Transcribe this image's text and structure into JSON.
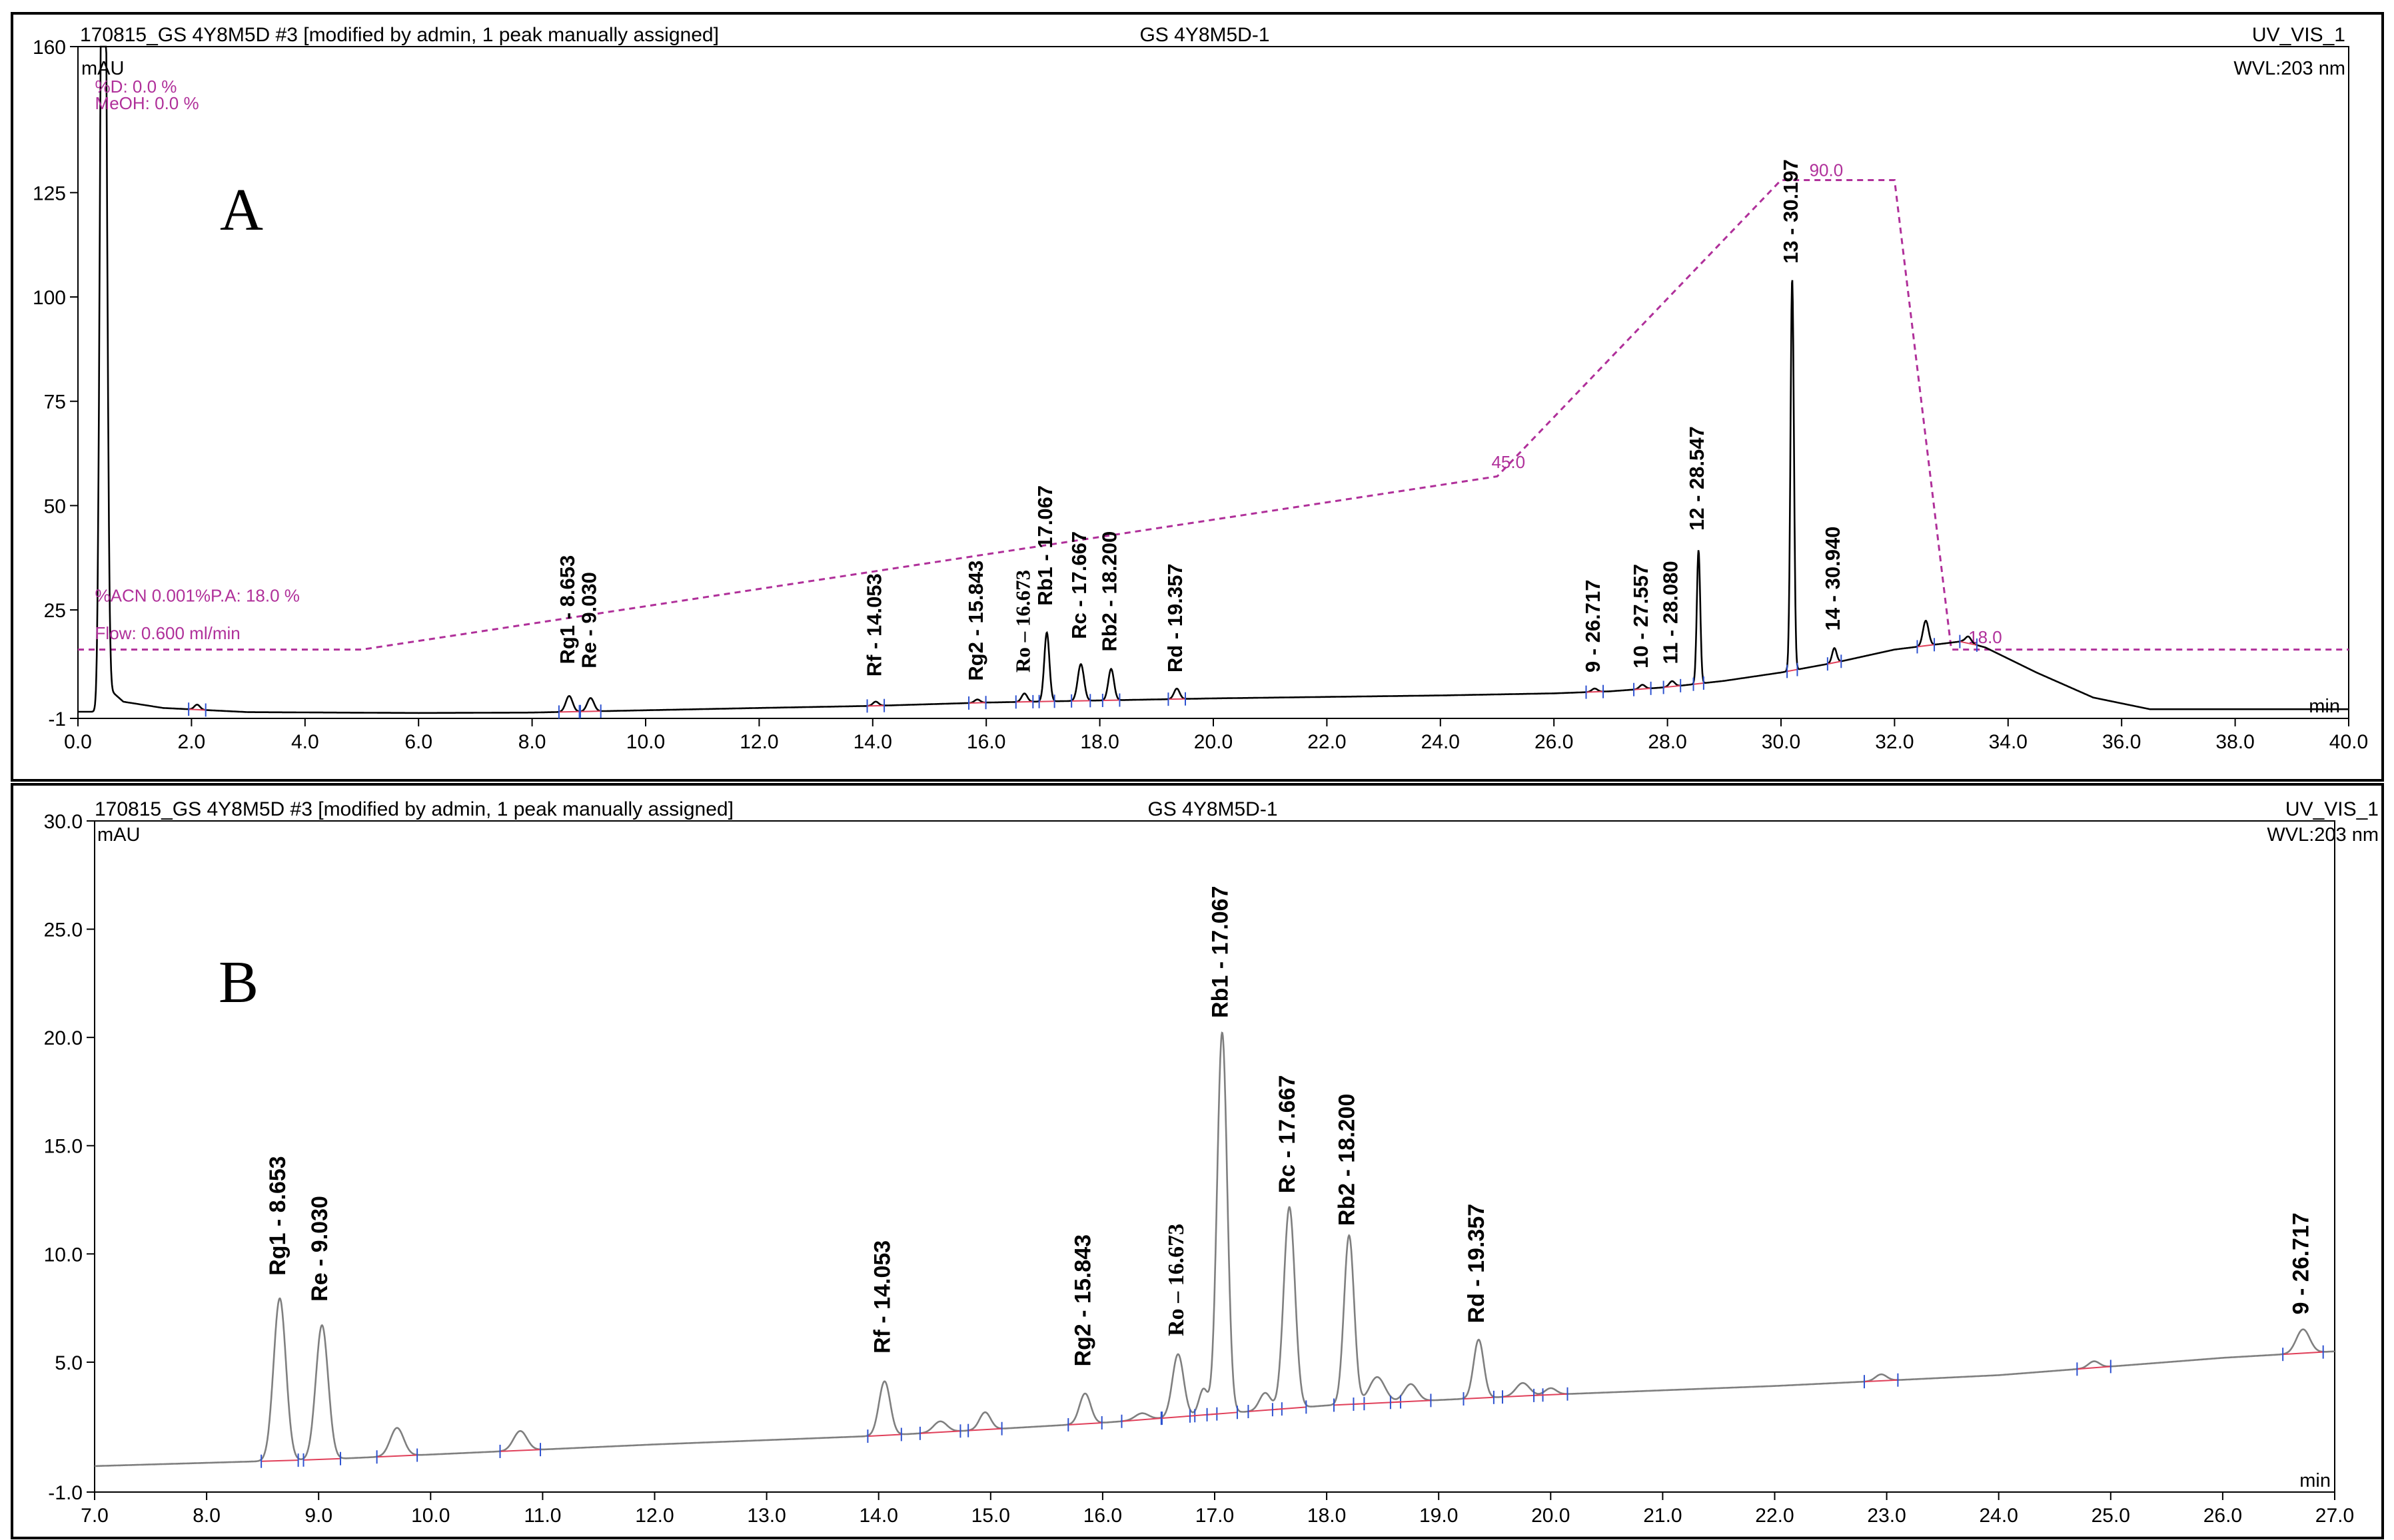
{
  "chart_data": [
    {
      "type": "line",
      "panel_label": "A",
      "header": {
        "left": "170815_GS 4Y8M5D #3 [modified by admin, 1 peak manually assigned]",
        "center": "GS 4Y8M5D-1",
        "right": "UV_VIS_1",
        "wavelength": "WVL:203 nm"
      },
      "ylabel": "mAU",
      "xlabel": "min",
      "xlim": [
        0,
        40
      ],
      "ylim": [
        -1,
        160
      ],
      "x_ticks": [
        "0.0",
        "2.0",
        "4.0",
        "6.0",
        "8.0",
        "10.0",
        "12.0",
        "14.0",
        "16.0",
        "18.0",
        "20.0",
        "22.0",
        "24.0",
        "26.0",
        "28.0",
        "30.0",
        "32.0",
        "34.0",
        "36.0",
        "38.0",
        "40.0"
      ],
      "y_ticks": [
        "-1",
        "25",
        "50",
        "75",
        "100",
        "125",
        "160"
      ],
      "y_tick_values": [
        -1,
        25,
        50,
        75,
        100,
        125,
        160
      ],
      "method_text": [
        {
          "text": "%D: 0.0 %",
          "t": 0.3,
          "y": 149
        },
        {
          "text": "MeOH: 0.0 %",
          "t": 0.3,
          "y": 145
        },
        {
          "text": "%ACN 0.001%P.A: 18.0 %",
          "t": 0.3,
          "y": 27
        },
        {
          "text": "Flow: 0.600 ml/min",
          "t": 0.3,
          "y": 18
        }
      ],
      "gradient": {
        "color": "#b0309a",
        "points": [
          [
            0,
            15.5
          ],
          [
            5,
            15.5
          ],
          [
            25,
            57
          ],
          [
            30,
            128
          ],
          [
            32,
            128
          ],
          [
            33,
            15.5
          ],
          [
            40,
            15.5
          ]
        ],
        "labels": [
          {
            "text": "45.0",
            "t": 24.9,
            "y": 59
          },
          {
            "text": "90.0",
            "t": 30.5,
            "y": 129
          },
          {
            "text": "18.0",
            "t": 33.3,
            "y": 17
          }
        ]
      },
      "series": [
        {
          "color": "#000000",
          "baseline": [
            [
              0,
              0.6
            ],
            [
              0.35,
              0.6
            ],
            [
              0.55,
              6
            ],
            [
              0.8,
              3
            ],
            [
              1.5,
              1.5
            ],
            [
              3,
              0.5
            ],
            [
              6,
              0.3
            ],
            [
              8,
              0.4
            ],
            [
              12,
              1.5
            ],
            [
              14,
              2
            ],
            [
              16,
              2.8
            ],
            [
              18,
              3.3
            ],
            [
              20,
              3.8
            ],
            [
              24,
              4.5
            ],
            [
              26,
              5
            ],
            [
              27,
              5.5
            ],
            [
              28,
              6.5
            ],
            [
              29,
              8
            ],
            [
              30,
              10
            ],
            [
              31,
              12.5
            ],
            [
              32,
              15.5
            ],
            [
              33.2,
              17.5
            ],
            [
              33.6,
              16
            ],
            [
              34.5,
              10
            ],
            [
              35.5,
              4
            ],
            [
              36.5,
              1.2
            ],
            [
              40,
              1.2
            ]
          ],
          "peaks": [
            {
              "t": 0.42,
              "h": 158,
              "w": 0.04
            },
            {
              "t": 0.48,
              "h": 150,
              "w": 0.04
            },
            {
              "t": 2.1,
              "h": 1.2,
              "w": 0.05
            },
            {
              "t": 8.653,
              "h": 3.8,
              "w": 0.06
            },
            {
              "t": 9.03,
              "h": 3.2,
              "w": 0.06
            },
            {
              "t": 14.053,
              "h": 1,
              "w": 0.05
            },
            {
              "t": 15.843,
              "h": 0.8,
              "w": 0.05
            },
            {
              "t": 16.673,
              "h": 2,
              "w": 0.05
            },
            {
              "t": 17.067,
              "h": 16.5,
              "w": 0.045
            },
            {
              "t": 17.667,
              "h": 8.8,
              "w": 0.055
            },
            {
              "t": 18.2,
              "h": 7.5,
              "w": 0.05
            },
            {
              "t": 19.357,
              "h": 2.5,
              "w": 0.05
            },
            {
              "t": 26.717,
              "h": 0.8,
              "w": 0.05
            },
            {
              "t": 27.557,
              "h": 1,
              "w": 0.05
            },
            {
              "t": 28.08,
              "h": 1.3,
              "w": 0.05
            },
            {
              "t": 28.547,
              "h": 32,
              "w": 0.03
            },
            {
              "t": 30.197,
              "h": 94,
              "w": 0.03
            },
            {
              "t": 30.94,
              "h": 3.5,
              "w": 0.04
            },
            {
              "t": 32.55,
              "h": 6,
              "w": 0.05
            },
            {
              "t": 33.3,
              "h": 1.5,
              "w": 0.05
            }
          ]
        }
      ],
      "annotations": [
        {
          "text": "Rg1 - 8.653",
          "t": 8.653,
          "y": 12
        },
        {
          "text": "Re - 9.030",
          "t": 9.03,
          "y": 11
        },
        {
          "text": "Rf - 14.053",
          "t": 14.053,
          "y": 9
        },
        {
          "text": "Rg2 - 15.843",
          "t": 15.843,
          "y": 8
        },
        {
          "text": "Ro – 16.673",
          "t": 16.673,
          "y": 10,
          "serif": true
        },
        {
          "text": "Rb1 - 17.067",
          "t": 17.067,
          "y": 26
        },
        {
          "text": "Rc - 17.667",
          "t": 17.667,
          "y": 18
        },
        {
          "text": "Rb2 - 18.200",
          "t": 18.2,
          "y": 15
        },
        {
          "text": "Rd - 19.357",
          "t": 19.357,
          "y": 10
        },
        {
          "text": "9 - 26.717",
          "t": 26.717,
          "y": 10
        },
        {
          "text": "10 - 27.557",
          "t": 27.557,
          "y": 11
        },
        {
          "text": "11 - 28.080",
          "t": 28.08,
          "y": 12
        },
        {
          "text": "12 - 28.547",
          "t": 28.547,
          "y": 44
        },
        {
          "text": "13 - 30.197",
          "t": 30.197,
          "y": 108
        },
        {
          "text": "14 - 30.940",
          "t": 30.94,
          "y": 20
        }
      ]
    },
    {
      "type": "line",
      "panel_label": "B",
      "header": {
        "left": "170815_GS 4Y8M5D #3 [modified by admin, 1 peak manually assigned]",
        "center": "GS 4Y8M5D-1",
        "right": "UV_VIS_1",
        "wavelength": "WVL:203 nm"
      },
      "ylabel": "mAU",
      "xlabel": "min",
      "xlim": [
        7,
        27
      ],
      "ylim": [
        -1,
        30
      ],
      "x_ticks": [
        "7.0",
        "8.0",
        "9.0",
        "10.0",
        "11.0",
        "12.0",
        "13.0",
        "14.0",
        "15.0",
        "16.0",
        "17.0",
        "18.0",
        "19.0",
        "20.0",
        "21.0",
        "22.0",
        "23.0",
        "24.0",
        "25.0",
        "26.0",
        "27.0"
      ],
      "y_ticks": [
        "-1.0",
        "5.0",
        "10.0",
        "15.0",
        "20.0",
        "25.0",
        "30.0"
      ],
      "y_tick_values": [
        -1,
        5,
        10,
        15,
        20,
        25,
        30
      ],
      "series": [
        {
          "color": "#7f7f7f",
          "baseline": [
            [
              7,
              0.2
            ],
            [
              9,
              0.5
            ],
            [
              12,
              1.2
            ],
            [
              14,
              1.6
            ],
            [
              16,
              2.2
            ],
            [
              17,
              2.6
            ],
            [
              18,
              3
            ],
            [
              20,
              3.5
            ],
            [
              22,
              3.9
            ],
            [
              24,
              4.4
            ],
            [
              26,
              5.2
            ],
            [
              27,
              5.5
            ]
          ],
          "peaks": [
            {
              "t": 8.653,
              "h": 7.5,
              "w": 0.055
            },
            {
              "t": 9.03,
              "h": 6.2,
              "w": 0.055
            },
            {
              "t": 9.7,
              "h": 1.3,
              "w": 0.06
            },
            {
              "t": 10.8,
              "h": 0.9,
              "w": 0.06
            },
            {
              "t": 14.053,
              "h": 2.5,
              "w": 0.05
            },
            {
              "t": 14.55,
              "h": 0.5,
              "w": 0.06
            },
            {
              "t": 14.95,
              "h": 0.8,
              "w": 0.05
            },
            {
              "t": 15.843,
              "h": 1.4,
              "w": 0.05
            },
            {
              "t": 16.35,
              "h": 0.3,
              "w": 0.06
            },
            {
              "t": 16.673,
              "h": 2.9,
              "w": 0.05
            },
            {
              "t": 16.9,
              "h": 1.2,
              "w": 0.04
            },
            {
              "t": 17.067,
              "h": 17.6,
              "w": 0.045
            },
            {
              "t": 17.45,
              "h": 0.8,
              "w": 0.05
            },
            {
              "t": 17.667,
              "h": 9.3,
              "w": 0.05
            },
            {
              "t": 18.2,
              "h": 7.8,
              "w": 0.045
            },
            {
              "t": 18.45,
              "h": 1.2,
              "w": 0.07
            },
            {
              "t": 18.75,
              "h": 0.8,
              "w": 0.06
            },
            {
              "t": 19.357,
              "h": 2.7,
              "w": 0.045
            },
            {
              "t": 19.75,
              "h": 0.6,
              "w": 0.06
            },
            {
              "t": 20.0,
              "h": 0.3,
              "w": 0.05
            },
            {
              "t": 22.95,
              "h": 0.3,
              "w": 0.05
            },
            {
              "t": 24.85,
              "h": 0.3,
              "w": 0.05
            },
            {
              "t": 26.717,
              "h": 1.1,
              "w": 0.06
            }
          ]
        }
      ],
      "annotations": [
        {
          "text": "Rg1 - 8.653",
          "t": 8.653,
          "y": 9
        },
        {
          "text": "Re - 9.030",
          "t": 9.03,
          "y": 7.8
        },
        {
          "text": "Rf - 14.053",
          "t": 14.053,
          "y": 5.4
        },
        {
          "text": "Rg2 - 15.843",
          "t": 15.843,
          "y": 4.8
        },
        {
          "text": "Ro – 16.673",
          "t": 16.673,
          "y": 6.2,
          "serif": true
        },
        {
          "text": "Rb1 - 17.067",
          "t": 17.067,
          "y": 20.9
        },
        {
          "text": "Rc - 17.667",
          "t": 17.667,
          "y": 12.8
        },
        {
          "text": "Rb2 - 18.200",
          "t": 18.2,
          "y": 11.3
        },
        {
          "text": "Rd - 19.357",
          "t": 19.357,
          "y": 6.8
        },
        {
          "text": "9 - 26.717",
          "t": 26.717,
          "y": 7.2
        }
      ]
    }
  ]
}
